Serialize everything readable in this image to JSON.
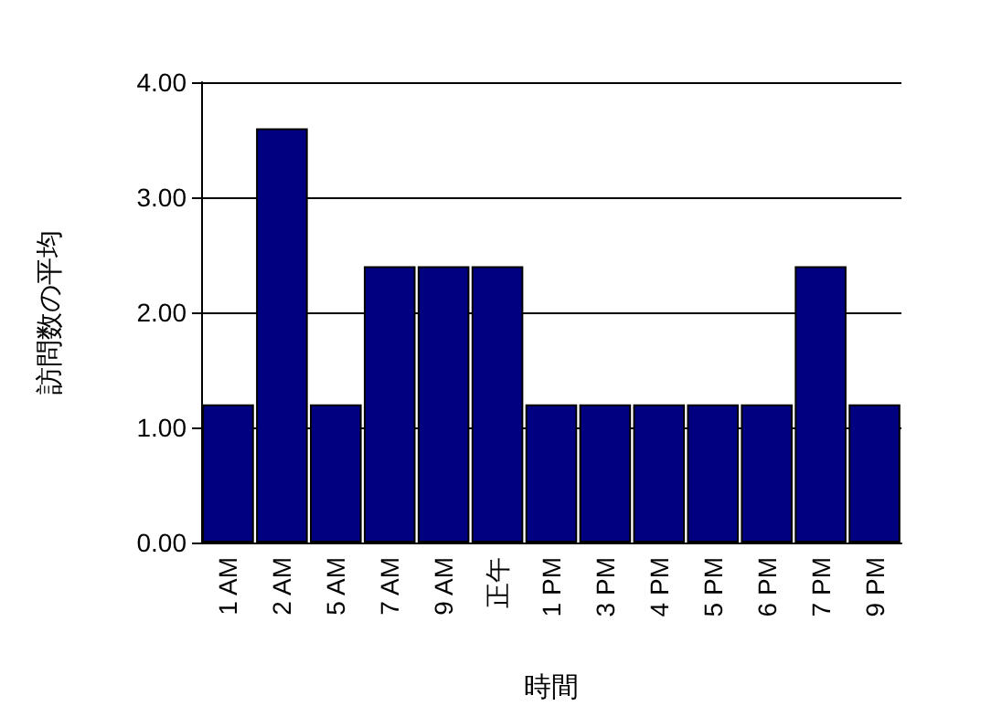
{
  "chart_data": {
    "type": "bar",
    "xlabel": "時間",
    "ylabel": "訪問数の平均",
    "categories": [
      "1 AM",
      "2 AM",
      "5 AM",
      "7 AM",
      "9 AM",
      "正午",
      "1 PM",
      "3 PM",
      "4 PM",
      "5 PM",
      "6 PM",
      "7 PM",
      "9 PM"
    ],
    "values": [
      1.2,
      3.6,
      1.2,
      2.4,
      2.4,
      2.4,
      1.2,
      1.2,
      1.2,
      1.2,
      1.2,
      2.4,
      1.2
    ],
    "color": "#000080",
    "ylim": [
      0,
      4
    ],
    "yticks": [
      {
        "value": 0,
        "label": "0.00"
      },
      {
        "value": 1,
        "label": "1.00"
      },
      {
        "value": 2,
        "label": "2.00"
      },
      {
        "value": 3,
        "label": "3.00"
      },
      {
        "value": 4,
        "label": "4.00"
      }
    ],
    "grid": "y"
  }
}
